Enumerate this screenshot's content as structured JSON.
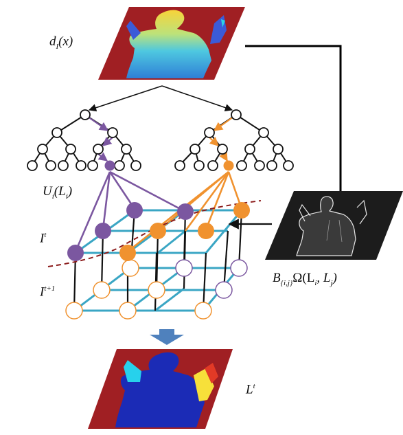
{
  "labels": {
    "depth_map": {
      "main": "d",
      "sub": "I",
      "arg": "(x)"
    },
    "unary": {
      "main": "U",
      "sub": "i",
      "arg": "(L",
      "argsub": "i",
      "close": ")"
    },
    "layer_t": {
      "main": "I",
      "sup": "t"
    },
    "layer_t1": {
      "main": "I",
      "sup": "t+1"
    },
    "pairwise": {
      "main": "B",
      "sub": "{i,j}",
      "omega": "Ω(L",
      "s1": "i",
      "mid": ", L",
      "s2": "j",
      "close": ")"
    },
    "labels_out": {
      "main": "L",
      "sup": "t"
    }
  },
  "colors": {
    "background_red": "#a01f23",
    "purple": "#7b57a0",
    "orange": "#f0922f",
    "grid_teal": "#3aa6c4",
    "dashed": "#8b1a1a",
    "arrow_blue": "#4f81bd"
  }
}
